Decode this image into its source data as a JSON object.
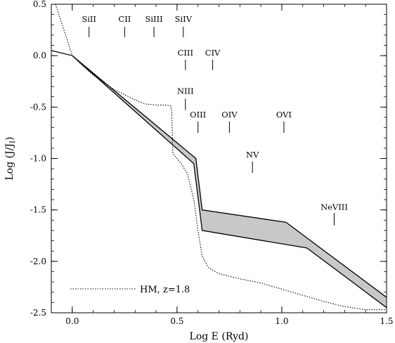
{
  "chart_data": {
    "type": "line",
    "title": "",
    "xlabel": "Log E (Ryd)",
    "ylabel": "Log (J/J_I)",
    "ylabel_main": "Log (J/J",
    "ylabel_sub": "I",
    "ylabel_close": ")",
    "xlim": [
      -0.1,
      1.5
    ],
    "ylim": [
      -2.5,
      0.5
    ],
    "x_ticks": [
      {
        "value": 0.0,
        "label": "0.0"
      },
      {
        "value": 0.5,
        "label": "0.5"
      },
      {
        "value": 1.0,
        "label": "1.0"
      },
      {
        "value": 1.5,
        "label": "1.5"
      }
    ],
    "y_ticks": [
      {
        "value": 0.5,
        "label": "0.5"
      },
      {
        "value": 0.0,
        "label": "0.0"
      },
      {
        "value": -0.5,
        "label": "-0.5"
      },
      {
        "value": -1.0,
        "label": "-1.0"
      },
      {
        "value": -1.5,
        "label": "-1.5"
      },
      {
        "value": -2.0,
        "label": "-2.0"
      },
      {
        "value": -2.5,
        "label": "-2.5"
      }
    ],
    "x_minor_step": 0.1,
    "y_minor_step": 0.1,
    "band": {
      "upper": [
        [
          -0.1,
          0.05
        ],
        [
          0.0,
          0.0
        ],
        [
          0.59,
          -1.0
        ],
        [
          0.62,
          -1.5
        ],
        [
          1.02,
          -1.62
        ],
        [
          1.5,
          -2.35
        ]
      ],
      "lower": [
        [
          0.0,
          0.0
        ],
        [
          0.58,
          -1.05
        ],
        [
          0.62,
          -1.7
        ],
        [
          1.12,
          -1.87
        ],
        [
          1.5,
          -2.45
        ]
      ],
      "fill_color": "#c8c8c8",
      "line_color": "#000000"
    },
    "series": [
      {
        "name": "HM, z=1.8",
        "style": "dotted",
        "x": [
          -0.08,
          -0.04,
          0.0,
          0.05,
          0.1,
          0.2,
          0.3,
          0.35,
          0.4,
          0.45,
          0.47,
          0.475,
          0.48,
          0.5,
          0.52,
          0.55,
          0.58,
          0.6,
          0.62,
          0.65,
          0.7,
          0.8,
          0.9,
          1.0,
          1.1,
          1.2,
          1.3,
          1.4,
          1.5
        ],
        "y": [
          0.5,
          0.25,
          0.0,
          -0.1,
          -0.19,
          -0.33,
          -0.43,
          -0.47,
          -0.48,
          -0.48,
          -0.49,
          -0.55,
          -0.95,
          -1.0,
          -1.05,
          -1.15,
          -1.4,
          -1.7,
          -1.95,
          -2.06,
          -2.12,
          -2.17,
          -2.21,
          -2.27,
          -2.33,
          -2.39,
          -2.44,
          -2.47,
          -2.47
        ]
      }
    ],
    "legend": {
      "position": "bottom-left",
      "label": "HM, z=1.8"
    },
    "annotations": [
      {
        "label": "SiII",
        "x": 0.08,
        "y_text": 0.33,
        "y_top": 0.28,
        "y_bottom": 0.18
      },
      {
        "label": "CII",
        "x": 0.25,
        "y_text": 0.33,
        "y_top": 0.28,
        "y_bottom": 0.18
      },
      {
        "label": "SiIII",
        "x": 0.39,
        "y_text": 0.33,
        "y_top": 0.28,
        "y_bottom": 0.18
      },
      {
        "label": "SiIV",
        "x": 0.53,
        "y_text": 0.33,
        "y_top": 0.28,
        "y_bottom": 0.18
      },
      {
        "label": "CIII",
        "x": 0.54,
        "y_text": 0.0,
        "y_top": -0.04,
        "y_bottom": -0.14
      },
      {
        "label": "CIV",
        "x": 0.67,
        "y_text": 0.0,
        "y_top": -0.04,
        "y_bottom": -0.14
      },
      {
        "label": "NIII",
        "x": 0.54,
        "y_text": -0.37,
        "y_top": -0.42,
        "y_bottom": -0.53
      },
      {
        "label": "OIII",
        "x": 0.6,
        "y_text": -0.6,
        "y_top": -0.64,
        "y_bottom": -0.75
      },
      {
        "label": "OIV",
        "x": 0.75,
        "y_text": -0.6,
        "y_top": -0.64,
        "y_bottom": -0.75
      },
      {
        "label": "OVI",
        "x": 1.01,
        "y_text": -0.6,
        "y_top": -0.64,
        "y_bottom": -0.75
      },
      {
        "label": "NV",
        "x": 0.86,
        "y_text": -0.99,
        "y_top": -1.03,
        "y_bottom": -1.14
      },
      {
        "label": "NeVIII",
        "x": 1.25,
        "y_text": -1.5,
        "y_top": -1.53,
        "y_bottom": -1.65
      }
    ]
  }
}
